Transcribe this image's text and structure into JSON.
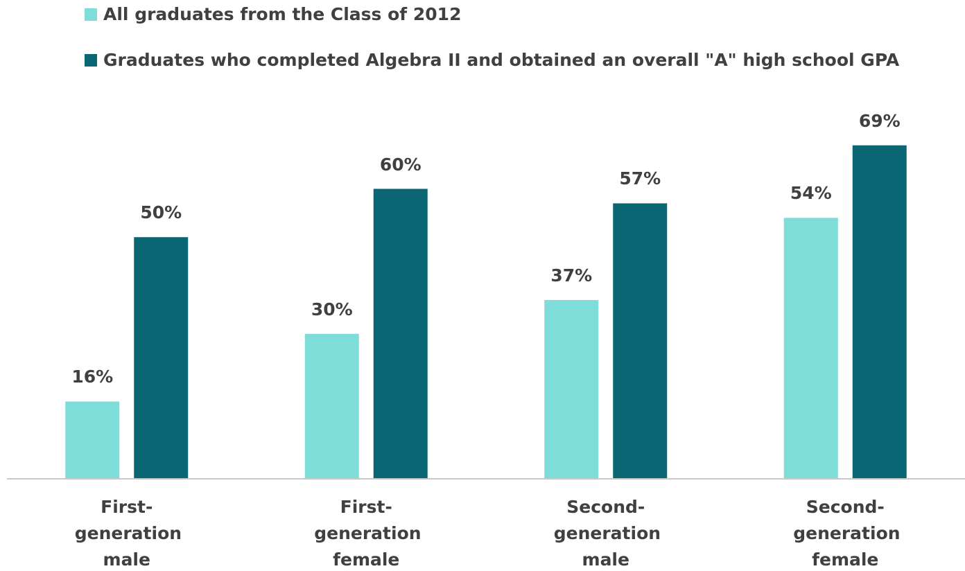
{
  "chart_data": {
    "type": "bar",
    "categories": [
      "First-generation male",
      "First-generation female",
      "Second-generation male",
      "Second-generation female"
    ],
    "series": [
      {
        "name": "All graduates from the Class of 2012",
        "color": "#7fddd9",
        "values": [
          16,
          30,
          37,
          54
        ],
        "value_labels": [
          "16%",
          "30%",
          "37%",
          "54%"
        ]
      },
      {
        "name": "Graduates who completed Algebra II and obtained an overall \"A\" high school GPA",
        "color": "#0b6673",
        "values": [
          50,
          60,
          57,
          69
        ],
        "value_labels": [
          "50%",
          "60%",
          "57%",
          "69%"
        ]
      }
    ],
    "ylim": [
      0,
      80
    ],
    "legend": "top-left"
  }
}
